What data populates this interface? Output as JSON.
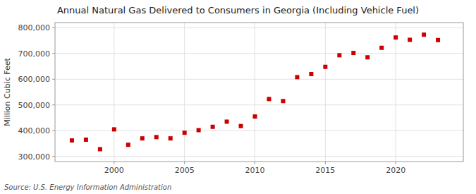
{
  "chart_data": {
    "type": "scatter",
    "title": "Annual Natural Gas Delivered to Consumers in Georgia (Including Vehicle Fuel)",
    "y_label": "Million Cubic Feet",
    "source": "Source: U.S. Energy Information Administration",
    "x": [
      1997,
      1998,
      1999,
      2000,
      2001,
      2002,
      2003,
      2004,
      2005,
      2006,
      2007,
      2008,
      2009,
      2010,
      2011,
      2012,
      2013,
      2014,
      2015,
      2016,
      2017,
      2018,
      2019,
      2020,
      2021,
      2022,
      2023
    ],
    "values": [
      362000,
      365000,
      328000,
      405000,
      345000,
      370000,
      375000,
      370000,
      392000,
      402000,
      415000,
      435000,
      418000,
      455000,
      523000,
      515000,
      608000,
      620000,
      648000,
      693000,
      702000,
      685000,
      722000,
      762000,
      753000,
      773000,
      752000
    ],
    "color": "#cc0000",
    "marker": "square",
    "xlim": [
      1995.8,
      2024.8
    ],
    "xticks": [
      2000,
      2005,
      2010,
      2015,
      2020
    ],
    "ylim": [
      280000,
      820000
    ],
    "yticks": [
      {
        "value": 300000,
        "label": "300,000"
      },
      {
        "value": 400000,
        "label": "400,000"
      },
      {
        "value": 500000,
        "label": "500,000"
      },
      {
        "value": 600000,
        "label": "600,000"
      },
      {
        "value": 700000,
        "label": "700,000"
      },
      {
        "value": 800000,
        "label": "800,000"
      }
    ],
    "grid": true
  }
}
